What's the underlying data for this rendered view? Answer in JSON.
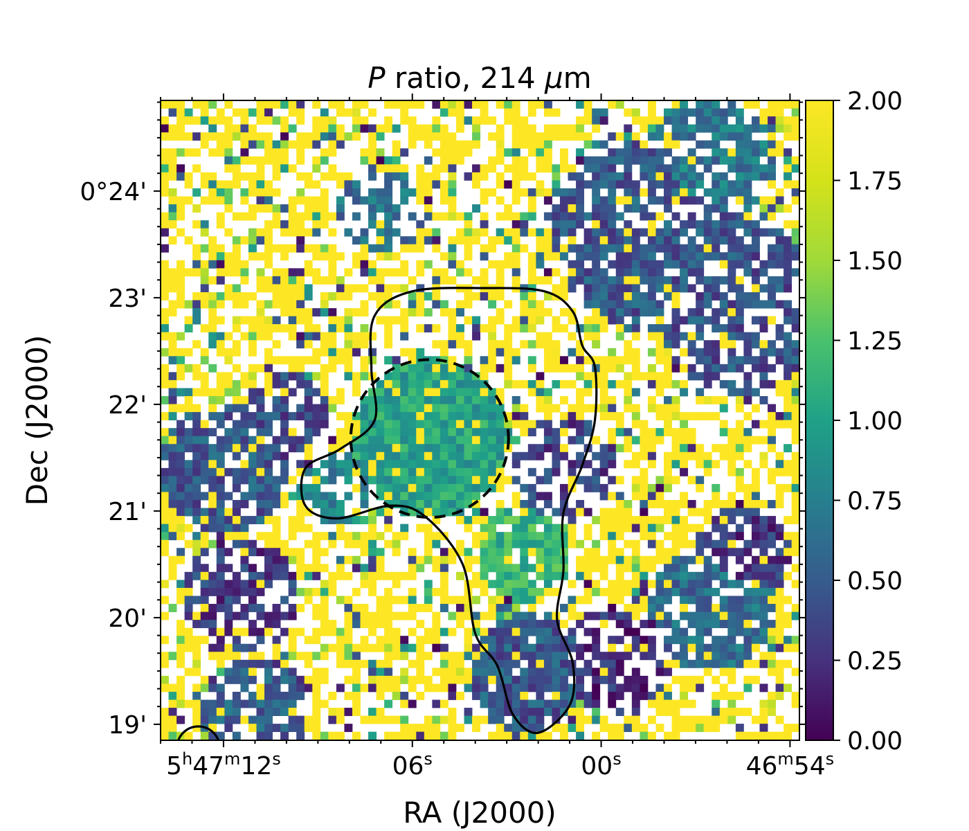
{
  "chart_data": {
    "type": "heatmap",
    "title_italic": "P",
    "title_rest": " ratio, 214 ",
    "title_mu": "μ",
    "title_unit": "m",
    "xlabel": "RA (J2000)",
    "ylabel": "Dec (J2000)",
    "xticks": [
      {
        "h": "5",
        "m": "47",
        "s": "12",
        "ra_sec": 432
      },
      {
        "s": "06",
        "ra_sec": 426
      },
      {
        "s": "00",
        "ra_sec": 420
      },
      {
        "m": "46",
        "s": "54",
        "ra_sec": 414
      }
    ],
    "yticks": [
      {
        "label": "0°24'",
        "dec_arcmin": 24
      },
      {
        "label": "23'",
        "dec_arcmin": 23
      },
      {
        "label": "22'",
        "dec_arcmin": 22
      },
      {
        "label": "21'",
        "dec_arcmin": 21
      },
      {
        "label": "20'",
        "dec_arcmin": 20
      },
      {
        "label": "19'",
        "dec_arcmin": 19
      }
    ],
    "xlim_ra_sec": [
      434.0,
      413.7
    ],
    "ylim_dec_arcmin": [
      18.85,
      24.85
    ],
    "colorbar": {
      "colormap": "viridis",
      "range": [
        0.0,
        2.0
      ],
      "ticks": [
        "0.00",
        "0.25",
        "0.50",
        "0.75",
        "1.00",
        "1.25",
        "1.50",
        "1.75",
        "2.00"
      ]
    },
    "circle": {
      "style": "dashed",
      "center_ra_sec": 425.45,
      "center_dec_arcmin": 21.68,
      "radius_arcmin": 0.74
    },
    "contour": {
      "style": "solid",
      "points_ra_dec": [
        [
          423.7,
          23.09
        ],
        [
          421.8,
          23.06
        ],
        [
          420.9,
          22.87
        ],
        [
          420.6,
          22.55
        ],
        [
          420.2,
          22.35
        ],
        [
          420.2,
          21.85
        ],
        [
          420.6,
          21.43
        ],
        [
          421.2,
          20.98
        ],
        [
          421.2,
          20.44
        ],
        [
          421.4,
          19.98
        ],
        [
          420.9,
          19.57
        ],
        [
          421.0,
          19.18
        ],
        [
          422.0,
          18.92
        ],
        [
          422.8,
          19.09
        ],
        [
          423.3,
          19.55
        ],
        [
          424.0,
          19.85
        ],
        [
          424.4,
          20.5
        ],
        [
          425.6,
          20.95
        ],
        [
          426.7,
          21.05
        ],
        [
          428.4,
          20.93
        ],
        [
          429.4,
          21.05
        ],
        [
          429.4,
          21.4
        ],
        [
          428.3,
          21.58
        ],
        [
          427.2,
          21.85
        ],
        [
          427.3,
          22.33
        ],
        [
          427.2,
          22.83
        ],
        [
          426.0,
          23.06
        ]
      ]
    },
    "corner_contour": {
      "style": "solid",
      "center_ra_sec": 432.8,
      "center_dec_arcmin": 18.78,
      "radius_arcmin": 0.2
    },
    "regions": [
      {
        "ra_sec": 425.45,
        "dec_arcmin": 21.68,
        "radius_arcmin": 0.74,
        "value": 1.15,
        "coverage": 1.0
      },
      {
        "ra_sec": 418.5,
        "dec_arcmin": 23.6,
        "radius_arcmin": 0.9,
        "value": 0.55,
        "coverage": 0.85
      },
      {
        "ra_sec": 415.5,
        "dec_arcmin": 22.9,
        "radius_arcmin": 0.8,
        "value": 0.5,
        "coverage": 0.7
      },
      {
        "ra_sec": 416.5,
        "dec_arcmin": 24.3,
        "radius_arcmin": 0.6,
        "value": 0.8,
        "coverage": 0.8
      },
      {
        "ra_sec": 416.5,
        "dec_arcmin": 20.1,
        "radius_arcmin": 0.6,
        "value": 0.7,
        "coverage": 0.85
      },
      {
        "ra_sec": 415.5,
        "dec_arcmin": 20.6,
        "radius_arcmin": 0.45,
        "value": 0.3,
        "coverage": 0.8
      },
      {
        "ra_sec": 422.3,
        "dec_arcmin": 19.5,
        "radius_arcmin": 0.55,
        "value": 0.55,
        "coverage": 0.9
      },
      {
        "ra_sec": 419.5,
        "dec_arcmin": 19.6,
        "radius_arcmin": 0.5,
        "value": 0.25,
        "coverage": 0.6
      },
      {
        "ra_sec": 422.5,
        "dec_arcmin": 20.6,
        "radius_arcmin": 0.45,
        "value": 1.3,
        "coverage": 0.9
      },
      {
        "ra_sec": 432.0,
        "dec_arcmin": 21.4,
        "radius_arcmin": 0.6,
        "value": 0.55,
        "coverage": 0.8
      },
      {
        "ra_sec": 431.5,
        "dec_arcmin": 20.2,
        "radius_arcmin": 0.55,
        "value": 0.35,
        "coverage": 0.65
      },
      {
        "ra_sec": 431.0,
        "dec_arcmin": 19.1,
        "radius_arcmin": 0.5,
        "value": 0.6,
        "coverage": 0.8
      },
      {
        "ra_sec": 430.0,
        "dec_arcmin": 21.9,
        "radius_arcmin": 0.4,
        "value": 0.45,
        "coverage": 0.7
      },
      {
        "ra_sec": 427.0,
        "dec_arcmin": 23.8,
        "radius_arcmin": 0.4,
        "value": 0.75,
        "coverage": 0.55
      },
      {
        "ra_sec": 428.4,
        "dec_arcmin": 21.2,
        "radius_arcmin": 0.35,
        "value": 0.9,
        "coverage": 0.7
      },
      {
        "ra_sec": 421.2,
        "dec_arcmin": 21.4,
        "radius_arcmin": 0.5,
        "value": 0.4,
        "coverage": 0.6
      }
    ]
  }
}
